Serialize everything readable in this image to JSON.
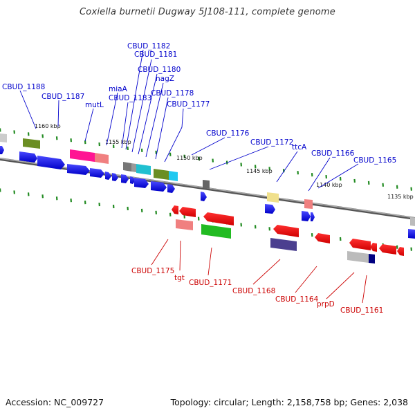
{
  "title": "Coxiella burnetii Dugway 5J108-111, complete genome",
  "footer": {
    "accession": "Accession: NC_009727",
    "stats": "Topology: circular; Length: 2,158,758 bp; Genes: 2,038"
  },
  "scale_labels": [
    "1160 kbp",
    "1155 kbp",
    "1150 kbp",
    "1145 kbp",
    "1140 kbp",
    "1135 kbp"
  ],
  "top_labels": [
    "CBUD_1188",
    "CBUD_1187",
    "mutL",
    "miaA",
    "CBUD_1183",
    "CBUD_1182",
    "CBUD_1181",
    "CBUD_1180",
    "nagZ",
    "CBUD_1178",
    "CBUD_1177",
    "CBUD_1176",
    "CBUD_1172",
    "ttcA",
    "CBUD_1166",
    "CBUD_1165"
  ],
  "bottom_labels": [
    "CBUD_1175",
    "tgt",
    "CBUD_1171",
    "CBUD_1168",
    "CBUD_1164",
    "prpD",
    "CBUD_1161"
  ],
  "colors": {
    "forward_strand": "#0000ee",
    "reverse_strand": "#ee0000",
    "backbone": "#777777",
    "ticks": "#228b22",
    "top_label": "#0000cc",
    "bottom_label": "#cc0000"
  }
}
